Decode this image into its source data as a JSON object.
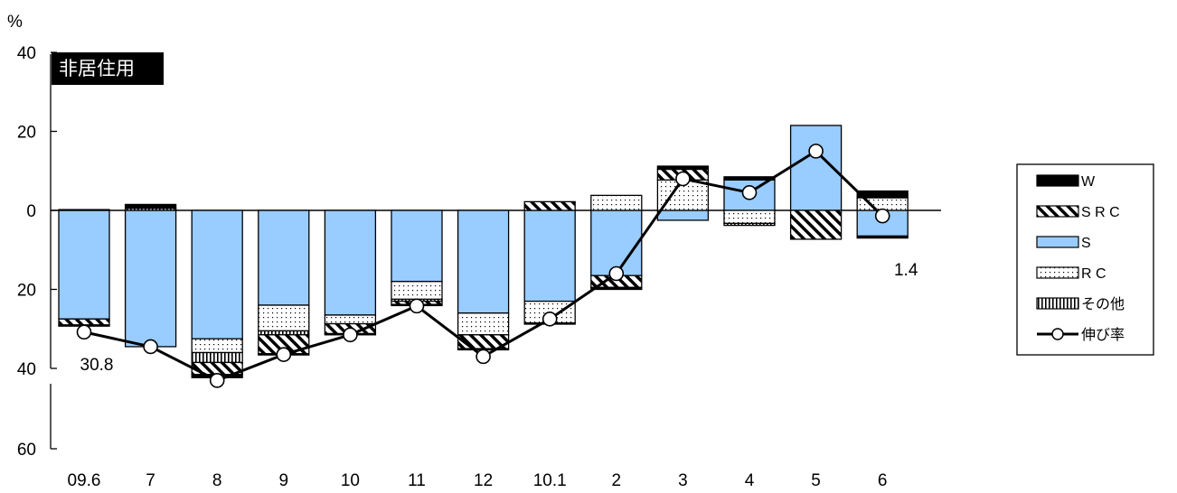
{
  "chart_data": {
    "type": "bar",
    "title_badge": "非居住用",
    "unit_label": "%",
    "categories": [
      "09.6",
      "7",
      "8",
      "9",
      "10",
      "11",
      "12",
      "10.1",
      "2",
      "3",
      "4",
      "5",
      "6"
    ],
    "y_axis": {
      "ylim": [
        -60,
        40
      ],
      "ticks": [
        40,
        20,
        0,
        -20,
        -40,
        -60
      ],
      "tick_labels": [
        "40",
        "20",
        "0",
        "20",
        "40",
        "60"
      ],
      "broken_between": [
        -40,
        -60
      ],
      "grid": false
    },
    "stack_series": [
      {
        "name": "W",
        "pattern": "solid-black",
        "pos": [
          0.2,
          1.0,
          0,
          0,
          0,
          0,
          0,
          0,
          0,
          0.8,
          0.8,
          0,
          1.7
        ],
        "neg": [
          -0.3,
          0,
          -0.8,
          -0.3,
          -0.3,
          -0.3,
          -0.3,
          -0.3,
          -0.5,
          0,
          0,
          0,
          -0.5
        ]
      },
      {
        "name": "SRC",
        "pattern": "diagonal-hatch",
        "pos": [
          0,
          0,
          0,
          0,
          0,
          0,
          0,
          2.2,
          0,
          2.7,
          0,
          0,
          0
        ],
        "neg": [
          -1.5,
          0,
          -3.0,
          -4.8,
          -2.5,
          -0.8,
          -3.5,
          0,
          -3.0,
          0,
          0,
          -7.3,
          0
        ]
      },
      {
        "name": "S",
        "pattern": "light-blue",
        "pos": [
          0,
          0,
          0,
          0,
          0,
          0,
          0,
          0,
          0,
          0,
          7.7,
          21.5,
          0
        ],
        "neg": [
          -27.5,
          -34.5,
          -32.5,
          -24.0,
          -26.5,
          -18.0,
          -26.0,
          -23.0,
          -16.5,
          -2.5,
          0,
          0,
          -6.5
        ]
      },
      {
        "name": "RC",
        "pattern": "dots",
        "pos": [
          0,
          0,
          0,
          0,
          0,
          0,
          0,
          0,
          3.8,
          7.7,
          0,
          0,
          3.2
        ],
        "neg": [
          0,
          0,
          -3.5,
          -6.5,
          -2.2,
          -4.5,
          -5.5,
          -5.5,
          0,
          0,
          -3.3,
          0,
          0
        ]
      },
      {
        "name": "その他",
        "pattern": "vertical-lines",
        "pos": [
          0,
          0.5,
          0,
          0,
          0,
          0,
          0,
          0,
          0,
          0,
          0,
          0,
          0
        ],
        "neg": [
          0,
          0,
          -2.5,
          -1.0,
          0,
          -0.5,
          0,
          0,
          0,
          0,
          -0.5,
          0,
          0
        ]
      }
    ],
    "line_series": {
      "name": "伸び率",
      "values": [
        -30.8,
        -34.5,
        -43.0,
        -36.5,
        -31.5,
        -24.2,
        -37.0,
        -27.5,
        -16.0,
        8.0,
        4.5,
        15.0,
        -1.4
      ]
    },
    "annotations": [
      {
        "category": "09.6",
        "text": "30.8"
      },
      {
        "category": "6",
        "text": "1.4"
      }
    ],
    "legend": {
      "position": "right",
      "entries": [
        {
          "key": "W",
          "label": "W"
        },
        {
          "key": "SRC",
          "label": "S R C"
        },
        {
          "key": "S",
          "label": "S"
        },
        {
          "key": "RC",
          "label": "R C"
        },
        {
          "key": "その他",
          "label": "その他"
        },
        {
          "key": "伸び率",
          "label": "伸び率"
        }
      ]
    },
    "colors": {
      "s_fill": "#99ccff",
      "black": "#000000",
      "white": "#ffffff"
    }
  }
}
